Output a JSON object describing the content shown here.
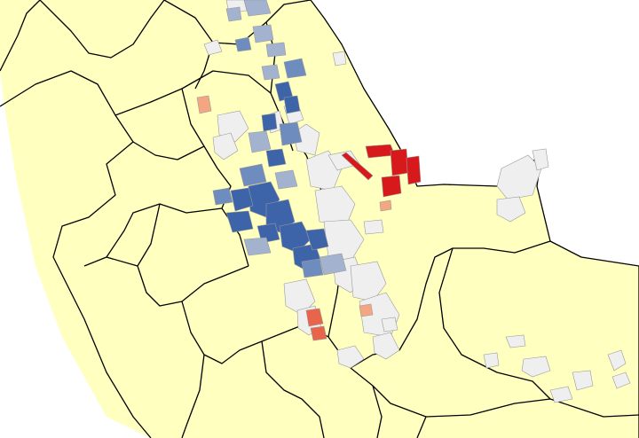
{
  "map": {
    "colors": {
      "land": "#ffffc0",
      "sea": "#ffffff",
      "border": "#000000",
      "parcel_unclassified": "#efefef",
      "parcel_outline": "#9a9a9a",
      "parcel_dark_blue": "#3d63a8",
      "parcel_mid_blue": "#6f8cbf",
      "parcel_light_blue": "#a3b3cf",
      "parcel_dark_red": "#d7191c",
      "parcel_light_red": "#f4a582",
      "parcel_mid_red": "#e8644a"
    },
    "icons": {
      "boundaries": "administrative-boundary-lines",
      "parcels": "land-parcel-polygons"
    }
  }
}
